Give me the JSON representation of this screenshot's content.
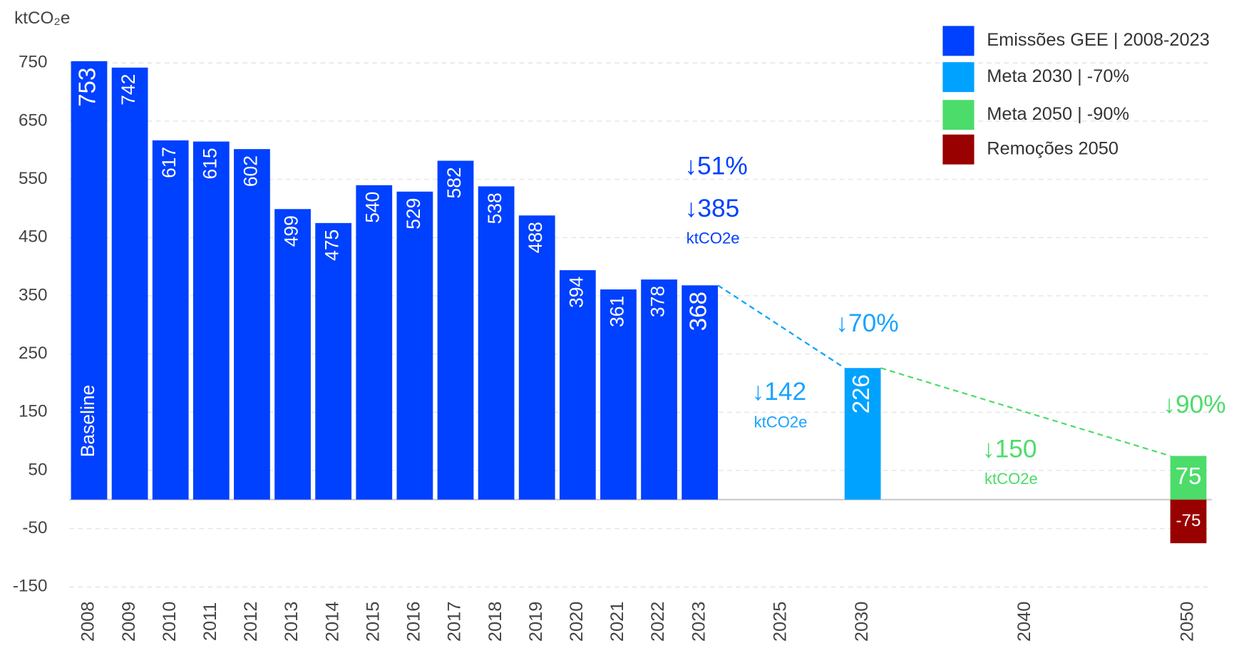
{
  "chart_data": {
    "type": "bar",
    "y_label": "ktCO₂e",
    "categories": [
      "2008",
      "2009",
      "2010",
      "2011",
      "2012",
      "2013",
      "2014",
      "2015",
      "2016",
      "2017",
      "2018",
      "2019",
      "2020",
      "2021",
      "2022",
      "2023",
      null,
      "2025",
      null,
      "2030",
      null,
      null,
      null,
      "2040",
      null,
      null,
      null,
      "2050"
    ],
    "series": [
      {
        "name": "Emissões GEE | 2008-2023",
        "color": "#0040ff",
        "values": [
          753,
          742,
          617,
          615,
          602,
          499,
          475,
          540,
          529,
          582,
          538,
          488,
          394,
          361,
          378,
          368,
          null,
          null,
          null,
          null,
          null,
          null,
          null,
          null,
          null,
          null,
          null,
          null
        ]
      },
      {
        "name": "Meta 2030 | -70%",
        "color": "#00a2ff",
        "values": [
          null,
          null,
          null,
          null,
          null,
          null,
          null,
          null,
          null,
          null,
          null,
          null,
          null,
          null,
          null,
          null,
          null,
          null,
          null,
          226,
          null,
          null,
          null,
          null,
          null,
          null,
          null,
          null
        ]
      },
      {
        "name": "Meta 2050 | -90%",
        "color": "#4cdc6a",
        "values": [
          null,
          null,
          null,
          null,
          null,
          null,
          null,
          null,
          null,
          null,
          null,
          null,
          null,
          null,
          null,
          null,
          null,
          null,
          null,
          null,
          null,
          null,
          null,
          null,
          null,
          null,
          null,
          75
        ]
      },
      {
        "name": "Remoções 2050",
        "color": "#990000",
        "values": [
          null,
          null,
          null,
          null,
          null,
          null,
          null,
          null,
          null,
          null,
          null,
          null,
          null,
          null,
          null,
          null,
          null,
          null,
          null,
          null,
          null,
          null,
          null,
          null,
          null,
          null,
          null,
          -75
        ]
      }
    ],
    "ylim": [
      -150,
      800
    ],
    "yticks": [
      750,
      650,
      550,
      450,
      350,
      250,
      150,
      50,
      -50,
      -150
    ],
    "grid": true,
    "legend": "top-right",
    "annotations": [
      {
        "text": "Baseline",
        "color": "#ffffff"
      },
      {
        "text": "↓51%",
        "color": "#0040ff"
      },
      {
        "text": "↓385",
        "color": "#0040ff"
      },
      {
        "text": "ktCO2e",
        "color": "#0040ff"
      },
      {
        "text": "↓70%",
        "color": "#1aa3ff"
      },
      {
        "text": "↓142",
        "color": "#1aa3ff"
      },
      {
        "text": "ktCO2e",
        "color": "#1aa3ff"
      },
      {
        "text": "↓90%",
        "color": "#4cdc6a"
      },
      {
        "text": "↓150",
        "color": "#4cdc6a"
      },
      {
        "text": "ktCO2e",
        "color": "#4cdc6a"
      }
    ]
  }
}
